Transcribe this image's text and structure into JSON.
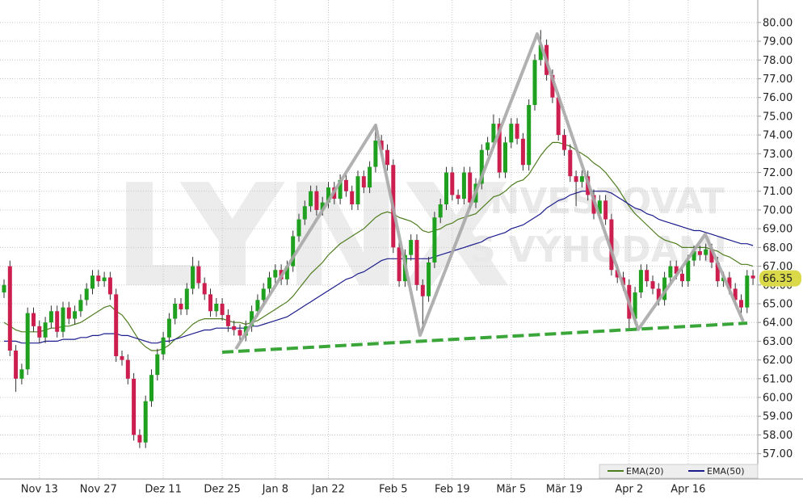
{
  "chart_data": {
    "type": "candlestick",
    "watermark": [
      "LYNX",
      "INVESTOVAT",
      "S VÝHODAMI"
    ],
    "categories": [
      null,
      null,
      null,
      null,
      null,
      null,
      "Nov 13",
      null,
      null,
      null,
      null,
      null,
      null,
      null,
      null,
      null,
      "Nov 27",
      null,
      null,
      null,
      null,
      null,
      null,
      null,
      null,
      null,
      null,
      "Dez 11",
      null,
      null,
      null,
      null,
      null,
      null,
      null,
      null,
      null,
      "Dez 25",
      null,
      null,
      null,
      null,
      null,
      null,
      null,
      null,
      "Jan 8",
      null,
      null,
      null,
      null,
      null,
      null,
      null,
      null,
      "Jan 22",
      null,
      null,
      null,
      null,
      null,
      null,
      null,
      null,
      null,
      null,
      "Feb 5",
      null,
      null,
      null,
      null,
      null,
      null,
      null,
      null,
      null,
      "Feb 19",
      null,
      null,
      null,
      null,
      null,
      null,
      null,
      null,
      null,
      "Mär 5",
      null,
      null,
      null,
      null,
      null,
      null,
      null,
      null,
      "Mär 19",
      null,
      null,
      null,
      null,
      null,
      null,
      null,
      null,
      null,
      null,
      "Apr 2",
      null,
      null,
      null,
      null,
      null,
      null,
      null,
      null,
      null,
      "Apr 16",
      null,
      null,
      null,
      null,
      null,
      null,
      null,
      null,
      null,
      null,
      null
    ],
    "open": [
      65.6,
      67.0,
      62.5,
      61.0,
      61.5,
      64.5,
      63.8,
      63.2,
      64.0,
      64.6,
      63.5,
      64.8,
      64.2,
      64.6,
      65.2,
      65.8,
      66.5,
      66.2,
      66.4,
      65.5,
      62.2,
      62.0,
      61.0,
      58.0,
      57.6,
      59.8,
      61.2,
      62.3,
      63.2,
      64.2,
      65.0,
      64.7,
      65.8,
      67.0,
      66.1,
      65.5,
      64.6,
      65.0,
      64.4,
      63.8,
      63.6,
      63.3,
      63.8,
      64.6,
      65.2,
      65.8,
      66.4,
      66.8,
      66.3,
      67.0,
      68.6,
      69.5,
      70.2,
      71.0,
      70.0,
      70.4,
      71.2,
      70.6,
      71.6,
      71.0,
      70.3,
      71.8,
      71.2,
      72.3,
      73.7,
      73.2,
      72.4,
      68.0,
      66.2,
      67.6,
      68.4,
      66.0,
      65.4,
      67.2,
      69.6,
      70.3,
      72.0,
      70.8,
      70.6,
      72.0,
      70.4,
      71.4,
      73.2,
      73.6,
      74.6,
      72.0,
      73.6,
      74.6,
      73.8,
      72.4,
      75.6,
      78.0,
      78.8,
      77.2,
      76.0,
      74.0,
      73.2,
      71.8,
      71.5,
      71.8,
      70.8,
      69.8,
      70.5,
      69.5,
      66.8,
      66.4,
      66.0,
      64.2,
      65.6,
      66.8,
      66.2,
      65.8,
      65.2,
      66.4,
      67.0,
      66.6,
      66.2,
      67.3,
      67.8,
      67.6,
      67.9,
      67.2,
      66.2,
      66.4,
      65.8,
      65.2,
      64.8,
      66.5
    ],
    "high": [
      66.3,
      67.3,
      62.8,
      61.8,
      64.8,
      64.8,
      64.1,
      64.3,
      64.9,
      64.9,
      65.1,
      65.1,
      64.9,
      65.5,
      66.1,
      66.8,
      66.8,
      66.7,
      66.7,
      65.8,
      62.5,
      62.3,
      61.3,
      58.3,
      60.1,
      61.5,
      62.6,
      63.5,
      64.5,
      65.3,
      65.3,
      66.1,
      67.5,
      67.3,
      66.4,
      65.8,
      65.3,
      65.3,
      64.7,
      64.1,
      63.9,
      64.1,
      64.9,
      65.5,
      66.1,
      66.7,
      67.1,
      67.1,
      67.3,
      68.9,
      69.8,
      70.5,
      71.3,
      71.3,
      70.7,
      71.5,
      71.5,
      71.9,
      71.9,
      71.3,
      72.1,
      72.1,
      72.6,
      74.5,
      74.0,
      73.5,
      72.7,
      68.3,
      67.9,
      68.7,
      68.7,
      66.3,
      67.5,
      69.9,
      70.6,
      72.3,
      72.3,
      71.1,
      72.3,
      72.3,
      71.7,
      73.5,
      73.9,
      75.1,
      74.9,
      73.9,
      74.9,
      74.9,
      74.1,
      75.9,
      78.3,
      79.6,
      79.1,
      77.5,
      76.3,
      74.3,
      73.5,
      72.1,
      72.1,
      72.1,
      71.1,
      70.8,
      70.8,
      69.8,
      67.1,
      66.7,
      66.3,
      65.9,
      67.1,
      67.1,
      66.5,
      66.1,
      66.7,
      67.3,
      67.3,
      66.9,
      67.6,
      68.1,
      68.1,
      68.2,
      68.2,
      67.5,
      66.7,
      66.7,
      66.1,
      65.5,
      66.8,
      66.8
    ],
    "low": [
      65.3,
      62.2,
      60.3,
      60.7,
      61.2,
      63.5,
      62.9,
      62.9,
      63.7,
      63.2,
      63.2,
      63.9,
      63.9,
      64.3,
      64.9,
      65.5,
      65.9,
      65.9,
      65.2,
      61.9,
      61.7,
      60.7,
      57.7,
      57.3,
      57.3,
      59.5,
      60.9,
      62.0,
      62.9,
      63.9,
      64.4,
      64.4,
      65.5,
      65.8,
      65.2,
      64.3,
      64.3,
      64.1,
      63.5,
      63.3,
      63.0,
      63.0,
      63.5,
      64.3,
      64.9,
      65.5,
      66.1,
      66.0,
      66.0,
      66.7,
      68.3,
      69.2,
      69.9,
      69.7,
      69.7,
      70.1,
      70.3,
      70.3,
      70.7,
      70.0,
      70.0,
      70.9,
      70.9,
      72.0,
      72.9,
      72.1,
      67.7,
      65.9,
      65.9,
      67.3,
      65.7,
      63.5,
      65.1,
      66.9,
      69.3,
      70.0,
      70.5,
      70.3,
      70.3,
      70.1,
      70.1,
      71.1,
      72.9,
      73.3,
      71.7,
      71.7,
      73.3,
      73.5,
      72.1,
      72.1,
      75.3,
      77.7,
      76.9,
      75.7,
      73.7,
      72.9,
      71.5,
      70.2,
      71.2,
      70.5,
      69.5,
      69.5,
      69.2,
      66.5,
      66.1,
      65.7,
      63.6,
      63.9,
      65.3,
      65.9,
      65.5,
      64.9,
      64.9,
      66.1,
      66.3,
      65.9,
      65.9,
      67.0,
      67.3,
      67.3,
      66.9,
      65.9,
      65.9,
      65.5,
      64.9,
      64.5,
      64.5,
      66.0
    ],
    "close": [
      66.0,
      62.5,
      61.0,
      61.5,
      64.5,
      63.8,
      63.2,
      64.0,
      64.6,
      63.5,
      64.8,
      64.2,
      64.6,
      65.2,
      65.8,
      66.5,
      66.2,
      66.4,
      65.5,
      62.2,
      62.0,
      61.0,
      58.0,
      57.6,
      59.8,
      61.2,
      62.3,
      63.2,
      64.2,
      65.0,
      64.7,
      65.8,
      67.0,
      66.1,
      65.5,
      64.6,
      65.0,
      64.4,
      63.8,
      63.6,
      63.3,
      63.8,
      64.6,
      65.2,
      65.8,
      66.4,
      66.8,
      66.3,
      67.0,
      68.6,
      69.5,
      70.2,
      71.0,
      70.0,
      70.4,
      71.2,
      70.6,
      71.6,
      71.0,
      70.3,
      71.8,
      71.2,
      72.3,
      73.7,
      73.2,
      72.4,
      68.0,
      66.2,
      67.6,
      68.4,
      66.0,
      65.4,
      67.2,
      69.6,
      70.3,
      72.0,
      70.8,
      70.6,
      72.0,
      70.4,
      71.4,
      73.2,
      73.6,
      74.6,
      72.0,
      73.6,
      74.6,
      73.8,
      72.4,
      75.6,
      78.0,
      78.8,
      77.2,
      76.0,
      74.0,
      73.2,
      71.8,
      71.5,
      71.8,
      70.8,
      69.8,
      70.5,
      69.5,
      66.8,
      66.4,
      66.0,
      64.2,
      65.6,
      66.8,
      66.2,
      65.8,
      65.2,
      66.4,
      67.0,
      66.6,
      66.2,
      67.3,
      67.8,
      67.6,
      67.9,
      67.2,
      66.2,
      66.4,
      65.8,
      65.2,
      64.8,
      66.5,
      66.35
    ],
    "series": [
      {
        "name": "EMA(20)",
        "color": "#4e7d1e",
        "values": [
          64.0,
          63.8,
          63.6,
          63.5,
          63.5,
          63.5,
          63.5,
          63.6,
          63.7,
          63.7,
          63.8,
          63.8,
          63.9,
          64.0,
          64.2,
          64.4,
          64.6,
          64.8,
          64.9,
          64.6,
          64.4,
          64.0,
          63.5,
          63.0,
          62.7,
          62.5,
          62.5,
          62.6,
          62.8,
          63.1,
          63.3,
          63.6,
          63.9,
          64.1,
          64.2,
          64.2,
          64.2,
          64.2,
          64.1,
          64.0,
          64.0,
          63.9,
          64.0,
          64.1,
          64.3,
          64.5,
          64.7,
          64.9,
          65.1,
          65.4,
          65.8,
          66.2,
          66.6,
          66.9,
          67.2,
          67.6,
          67.9,
          68.2,
          68.4,
          68.6,
          68.8,
          69.0,
          69.3,
          69.6,
          69.8,
          69.9,
          69.8,
          69.6,
          69.5,
          69.4,
          69.2,
          68.9,
          68.8,
          68.9,
          69.0,
          69.2,
          69.3,
          69.5,
          69.6,
          69.7,
          69.8,
          70.1,
          70.4,
          70.7,
          70.8,
          71.0,
          71.3,
          71.5,
          71.6,
          71.9,
          72.4,
          72.9,
          73.3,
          73.6,
          73.6,
          73.5,
          73.4,
          73.2,
          73.0,
          72.8,
          72.5,
          72.3,
          72.0,
          71.6,
          71.2,
          70.7,
          70.2,
          69.8,
          69.5,
          69.2,
          68.9,
          68.6,
          68.4,
          68.3,
          68.2,
          68.0,
          68.0,
          68.0,
          68.0,
          68.0,
          67.9,
          67.8,
          67.6,
          67.5,
          67.3,
          67.1,
          67.1,
          67.0
        ]
      },
      {
        "name": "EMA(50)",
        "color": "#1c1c8c",
        "values": [
          63.0,
          63.0,
          63.0,
          62.9,
          62.9,
          62.9,
          62.9,
          63.0,
          63.0,
          63.0,
          63.1,
          63.1,
          63.1,
          63.2,
          63.2,
          63.3,
          63.3,
          63.4,
          63.4,
          63.4,
          63.3,
          63.3,
          63.2,
          63.1,
          63.0,
          62.9,
          62.9,
          63.0,
          63.0,
          63.1,
          63.2,
          63.3,
          63.4,
          63.5,
          63.6,
          63.6,
          63.7,
          63.7,
          63.7,
          63.7,
          63.7,
          63.7,
          63.8,
          63.8,
          63.9,
          64.0,
          64.1,
          64.2,
          64.3,
          64.5,
          64.7,
          64.9,
          65.1,
          65.3,
          65.5,
          65.7,
          65.9,
          66.1,
          66.3,
          66.4,
          66.6,
          66.7,
          66.9,
          67.1,
          67.3,
          67.4,
          67.4,
          67.4,
          67.4,
          67.4,
          67.4,
          67.4,
          67.4,
          67.5,
          67.6,
          67.7,
          67.8,
          67.9,
          68.0,
          68.1,
          68.2,
          68.3,
          68.5,
          68.6,
          68.7,
          68.8,
          69.0,
          69.1,
          69.2,
          69.4,
          69.6,
          69.8,
          70.1,
          70.3,
          70.5,
          70.6,
          70.8,
          70.9,
          71.0,
          71.0,
          71.0,
          71.0,
          71.0,
          70.9,
          70.7,
          70.5,
          70.3,
          70.1,
          70.0,
          69.8,
          69.7,
          69.5,
          69.4,
          69.3,
          69.2,
          69.1,
          69.0,
          68.9,
          68.9,
          68.8,
          68.7,
          68.6,
          68.5,
          68.4,
          68.3,
          68.2,
          68.2,
          68.1
        ]
      }
    ],
    "up_color": "#1fa01f",
    "down_color": "#cc1f4f",
    "last_price_color": "#d9d94a",
    "ylim": [
      55.65,
      81.2
    ],
    "yticks": [
      {
        "value": 57,
        "label": "57.00"
      },
      {
        "value": 58,
        "label": "58.00"
      },
      {
        "value": 59,
        "label": "59.00"
      },
      {
        "value": 60,
        "label": "60.00"
      },
      {
        "value": 61,
        "label": "61.00"
      },
      {
        "value": 62,
        "label": "62.00"
      },
      {
        "value": 63,
        "label": "63.00"
      },
      {
        "value": 64,
        "label": "64.00"
      },
      {
        "value": 65,
        "label": "65.00"
      },
      {
        "value": 66,
        "label": "66.00"
      },
      {
        "value": 67,
        "label": "67.00"
      },
      {
        "value": 68,
        "label": "68.00"
      },
      {
        "value": 69,
        "label": "69.00"
      },
      {
        "value": 70,
        "label": "70.00"
      },
      {
        "value": 71,
        "label": "71.00"
      },
      {
        "value": 72,
        "label": "72.00"
      },
      {
        "value": 73,
        "label": "73.00"
      },
      {
        "value": 74,
        "label": "74.00"
      },
      {
        "value": 75,
        "label": "75.00"
      },
      {
        "value": 76,
        "label": "76.00"
      },
      {
        "value": 77,
        "label": "77.00"
      },
      {
        "value": 78,
        "label": "78.00"
      },
      {
        "value": 79,
        "label": "79.00"
      },
      {
        "value": 80,
        "label": "80.00"
      }
    ],
    "grid": true
  }
}
